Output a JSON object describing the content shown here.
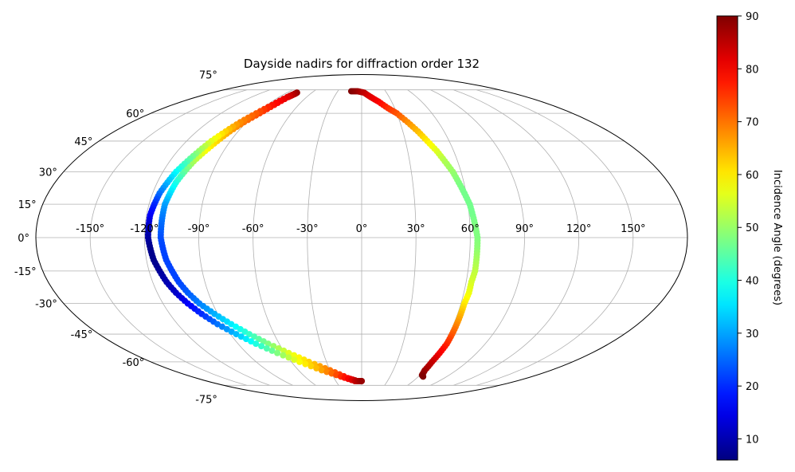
{
  "chart_data": {
    "type": "scatter",
    "projection": "mollweide",
    "title": "Dayside nadirs for diffraction order 132",
    "grid": true,
    "lon_ticks": [
      -150,
      -120,
      -90,
      -60,
      -30,
      0,
      30,
      60,
      90,
      120,
      150
    ],
    "lon_tick_labels": [
      "-150°",
      "-120°",
      "-90°",
      "-60°",
      "-30°",
      "0°",
      "30°",
      "60°",
      "90°",
      "120°",
      "150°"
    ],
    "lat_ticks": [
      75,
      60,
      45,
      30,
      15,
      0,
      -15,
      -30,
      -45,
      -60,
      -75
    ],
    "lat_tick_labels": [
      "75°",
      "60°",
      "45°",
      "30°",
      "15°",
      "0°",
      "-15°",
      "-30°",
      "-45°",
      "-60°",
      "-75°"
    ],
    "colorbar": {
      "label": "Incidence Angle (degrees)",
      "range": [
        6,
        90
      ],
      "ticks": [
        10,
        20,
        30,
        40,
        50,
        60,
        70,
        80,
        90
      ],
      "tick_labels": [
        "10",
        "20",
        "30",
        "40",
        "50",
        "60",
        "70",
        "80",
        "90"
      ],
      "colormap": "jet"
    },
    "series": [
      {
        "points": [
          [
            -78,
            73,
            88
          ],
          [
            -78,
            72,
            84
          ],
          [
            -80,
            70,
            82
          ],
          [
            -83,
            65,
            78
          ],
          [
            -87,
            60,
            74
          ],
          [
            -92,
            55,
            70
          ],
          [
            -96,
            50,
            66
          ],
          [
            -99,
            45,
            62
          ],
          [
            -102,
            40,
            58
          ],
          [
            -105,
            35,
            52
          ],
          [
            -107,
            30,
            46
          ],
          [
            -109,
            25,
            40
          ],
          [
            -110,
            20,
            35
          ],
          [
            -111,
            15,
            30
          ],
          [
            -111,
            10,
            27
          ],
          [
            -111,
            5,
            25
          ],
          [
            -111,
            0,
            23
          ],
          [
            -110,
            -5,
            22
          ],
          [
            -109,
            -10,
            22
          ],
          [
            -107,
            -15,
            22
          ],
          [
            -105,
            -20,
            22
          ],
          [
            -102,
            -25,
            24
          ],
          [
            -98,
            -30,
            27
          ],
          [
            -92,
            -35,
            31
          ],
          [
            -85,
            -40,
            36
          ],
          [
            -77,
            -45,
            42
          ],
          [
            -68,
            -50,
            48
          ],
          [
            -57,
            -55,
            56
          ],
          [
            -45,
            -60,
            62
          ],
          [
            -30,
            -65,
            70
          ],
          [
            -15,
            -70,
            80
          ],
          [
            -5,
            -72,
            86
          ],
          [
            0,
            -72,
            88
          ]
        ]
      },
      {
        "points": [
          [
            -78,
            73,
            88
          ],
          [
            -81,
            70,
            82
          ],
          [
            -85,
            65,
            78
          ],
          [
            -90,
            60,
            72
          ],
          [
            -95,
            55,
            68
          ],
          [
            -99,
            50,
            62
          ],
          [
            -103,
            45,
            56
          ],
          [
            -106,
            40,
            50
          ],
          [
            -109,
            35,
            44
          ],
          [
            -112,
            30,
            38
          ],
          [
            -114,
            25,
            32
          ],
          [
            -116,
            20,
            26
          ],
          [
            -117,
            15,
            20
          ],
          [
            -118,
            10,
            16
          ],
          [
            -118,
            5,
            12
          ],
          [
            -118,
            0,
            9
          ],
          [
            -117,
            -5,
            7
          ],
          [
            -116,
            -10,
            7
          ],
          [
            -114,
            -15,
            8
          ],
          [
            -112,
            -20,
            10
          ],
          [
            -109,
            -25,
            12
          ],
          [
            -105,
            -30,
            16
          ],
          [
            -100,
            -35,
            20
          ],
          [
            -94,
            -40,
            26
          ],
          [
            -86,
            -45,
            32
          ],
          [
            -77,
            -50,
            40
          ],
          [
            -66,
            -55,
            48
          ],
          [
            -53,
            -60,
            58
          ],
          [
            -38,
            -65,
            66
          ],
          [
            -22,
            -69,
            76
          ],
          [
            -8,
            -72,
            84
          ],
          [
            0,
            -72,
            88
          ]
        ]
      },
      {
        "points": [
          [
            -13,
            74,
            90
          ],
          [
            -5,
            74,
            88
          ],
          [
            3,
            73,
            85
          ],
          [
            10,
            70,
            82
          ],
          [
            17,
            67,
            80
          ],
          [
            24,
            63,
            76
          ],
          [
            30,
            60,
            73
          ],
          [
            36,
            55,
            68
          ],
          [
            41,
            50,
            64
          ],
          [
            45,
            45,
            60
          ],
          [
            49,
            40,
            56
          ],
          [
            52,
            35,
            52
          ],
          [
            55,
            30,
            50
          ],
          [
            57,
            25,
            48
          ],
          [
            59,
            20,
            47
          ],
          [
            61,
            15,
            47
          ],
          [
            62,
            10,
            47
          ],
          [
            63,
            5,
            48
          ],
          [
            64,
            0,
            48
          ],
          [
            64,
            -5,
            49
          ],
          [
            64,
            -10,
            51
          ],
          [
            64,
            -15,
            53
          ],
          [
            63,
            -20,
            55
          ],
          [
            63,
            -25,
            57
          ],
          [
            62,
            -30,
            60
          ],
          [
            62,
            -35,
            64
          ],
          [
            62,
            -40,
            68
          ],
          [
            62,
            -45,
            72
          ],
          [
            62,
            -50,
            76
          ],
          [
            61,
            -55,
            80
          ],
          [
            60,
            -60,
            84
          ],
          [
            60,
            -65,
            87
          ],
          [
            62,
            -68,
            89
          ],
          [
            65,
            -69,
            90
          ]
        ]
      }
    ]
  }
}
